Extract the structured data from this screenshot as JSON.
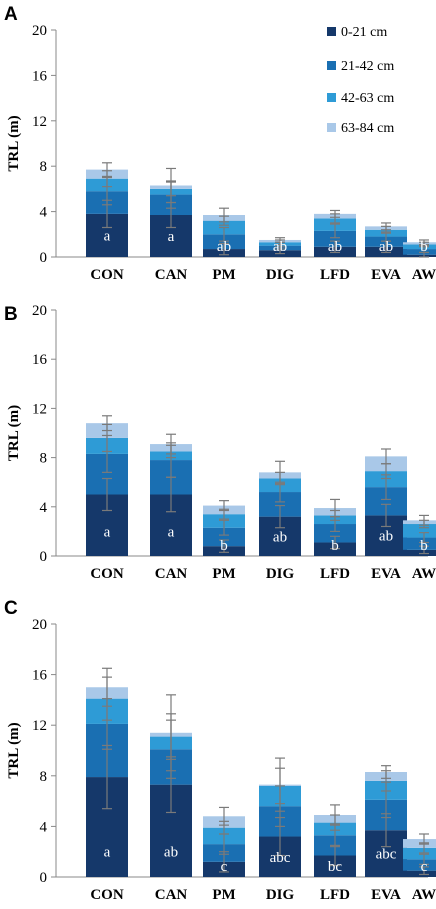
{
  "legend": {
    "items": [
      "0-21 cm",
      "21-42 cm",
      "42-63 cm",
      "63-84 cm"
    ]
  },
  "colors": [
    "#15386a",
    "#1a6fb2",
    "#2e9bd6",
    "#a9c8e8"
  ],
  "chart_data": [
    {
      "type": "bar",
      "stacked": true,
      "panel": "A",
      "ylabel": "TRL (m)",
      "ylim": [
        0,
        20
      ],
      "yticks": [
        0,
        4,
        8,
        12,
        16,
        20
      ],
      "categories": [
        "CON",
        "CAN",
        "PM",
        "DIG",
        "LFD",
        "EVA",
        "AW"
      ],
      "series": [
        {
          "name": "0-21 cm",
          "values": [
            3.8,
            3.7,
            0.7,
            0.6,
            0.9,
            0.9,
            0.2
          ]
        },
        {
          "name": "21-42 cm",
          "values": [
            2.0,
            1.8,
            1.3,
            0.4,
            1.4,
            0.9,
            0.5
          ]
        },
        {
          "name": "42-63 cm",
          "values": [
            1.1,
            0.5,
            1.2,
            0.3,
            1.1,
            0.6,
            0.4
          ]
        },
        {
          "name": "63-84 cm",
          "values": [
            0.8,
            0.3,
            0.5,
            0.2,
            0.4,
            0.3,
            0.2
          ]
        }
      ],
      "error_bars": [
        [
          1.2,
          1.1,
          0.5,
          0.3,
          0.5,
          0.5,
          0.2
        ],
        [
          1.2,
          1.2,
          0.6,
          0.3,
          0.6,
          0.4,
          0.3
        ],
        [
          0.7,
          0.6,
          0.4,
          0.2,
          0.4,
          0.3,
          0.2
        ],
        [
          0.6,
          1.5,
          0.6,
          0.2,
          0.3,
          0.3,
          0.2
        ]
      ],
      "labels": [
        "a",
        "a",
        "ab",
        "ab",
        "ab",
        "ab",
        "b"
      ]
    },
    {
      "type": "bar",
      "stacked": true,
      "panel": "B",
      "ylabel": "TRL (m)",
      "ylim": [
        0,
        20
      ],
      "yticks": [
        0,
        4,
        8,
        12,
        16,
        20
      ],
      "categories": [
        "CON",
        "CAN",
        "PM",
        "DIG",
        "LFD",
        "EVA",
        "AW"
      ],
      "series": [
        {
          "name": "0-21 cm",
          "values": [
            5.0,
            5.0,
            0.8,
            3.2,
            1.1,
            3.3,
            0.5
          ]
        },
        {
          "name": "21-42 cm",
          "values": [
            3.3,
            2.8,
            1.5,
            2.0,
            1.5,
            2.3,
            1.0
          ]
        },
        {
          "name": "42-63 cm",
          "values": [
            1.3,
            0.7,
            1.1,
            1.1,
            0.7,
            1.3,
            1.1
          ]
        },
        {
          "name": "63-84 cm",
          "values": [
            1.2,
            0.6,
            0.7,
            0.5,
            0.6,
            1.2,
            0.3
          ]
        }
      ],
      "error_bars": [
        [
          1.3,
          1.4,
          0.5,
          0.9,
          0.5,
          0.9,
          0.3
        ],
        [
          1.5,
          1.4,
          0.6,
          0.8,
          0.6,
          1.0,
          0.4
        ],
        [
          1.1,
          0.5,
          0.4,
          0.5,
          0.4,
          0.6,
          0.3
        ],
        [
          0.6,
          0.8,
          0.4,
          0.9,
          0.7,
          0.6,
          0.4
        ]
      ],
      "labels": [
        "a",
        "a",
        "b",
        "ab",
        "b",
        "ab",
        "b"
      ]
    },
    {
      "type": "bar",
      "stacked": true,
      "panel": "C",
      "ylabel": "TRL (m)",
      "ylim": [
        0,
        20
      ],
      "yticks": [
        0,
        4,
        8,
        12,
        16,
        20
      ],
      "categories": [
        "CON",
        "CAN",
        "PM",
        "DIG",
        "LFD",
        "EVA",
        "AW"
      ],
      "series": [
        {
          "name": "0-21 cm",
          "values": [
            7.9,
            7.3,
            1.2,
            3.2,
            1.7,
            3.7,
            0.5
          ]
        },
        {
          "name": "21-42 cm",
          "values": [
            4.2,
            2.8,
            1.4,
            2.4,
            1.6,
            2.4,
            0.9
          ]
        },
        {
          "name": "42-63 cm",
          "values": [
            2.0,
            1.0,
            1.3,
            1.6,
            1.0,
            1.5,
            0.9
          ]
        },
        {
          "name": "63-84 cm",
          "values": [
            0.9,
            0.3,
            0.9,
            0.1,
            0.6,
            0.7,
            0.7
          ]
        }
      ],
      "error_bars": [
        [
          2.5,
          2.2,
          0.8,
          1.5,
          0.8,
          1.3,
          0.3
        ],
        [
          2.0,
          2.3,
          0.8,
          1.6,
          0.9,
          1.4,
          0.4
        ],
        [
          1.7,
          1.8,
          0.5,
          1.4,
          0.6,
          0.8,
          0.4
        ],
        [
          1.5,
          3.0,
          0.7,
          2.1,
          0.8,
          0.5,
          0.4
        ]
      ],
      "labels": [
        "a",
        "ab",
        "c",
        "abc",
        "bc",
        "abc",
        "c"
      ]
    }
  ]
}
